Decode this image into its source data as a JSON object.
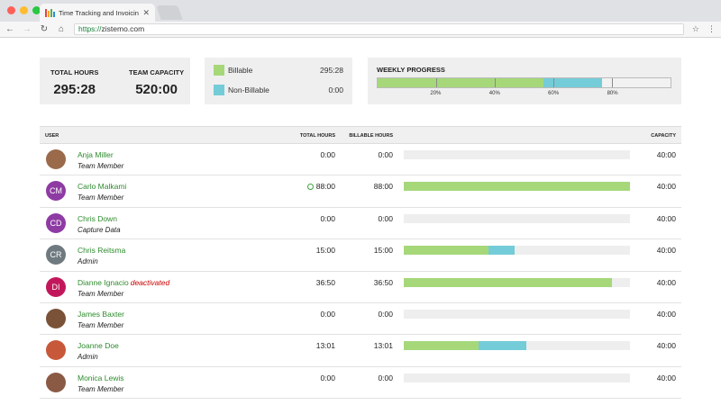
{
  "browser": {
    "tab_title": "Time Tracking and Invoicing i",
    "url_scheme": "https://",
    "url_host": "zistemo.com"
  },
  "colors": {
    "billable": "#a6d87a",
    "non_billable": "#74ccd8"
  },
  "summary": {
    "total_hours_label": "TOTAL HOURS",
    "total_hours": "295:28",
    "team_capacity_label": "TEAM CAPACITY",
    "team_capacity": "520:00"
  },
  "legend": {
    "billable_label": "Billable",
    "billable_value": "295:28",
    "non_billable_label": "Non-Billable",
    "non_billable_value": "0:00"
  },
  "weekly_progress": {
    "title": "WEEKLY PROGRESS",
    "billable_fraction": 0.565,
    "non_billable_fraction": 0.2,
    "ticks": [
      "20%",
      "40%",
      "60%",
      "80%"
    ]
  },
  "table": {
    "headers": {
      "user": "USER",
      "total": "TOTAL HOURS",
      "billable": "BILLABLE HOURS",
      "capacity": "CAPACITY"
    },
    "rows": [
      {
        "name": "Anja Miller",
        "role": "Team Member",
        "initials": "",
        "avatar_color": "#9a6a4a",
        "total": "0:00",
        "billable": "0:00",
        "capacity": "40:00",
        "billable_fraction": 0,
        "non_billable_fraction": 0,
        "deactivated": "",
        "clock": false
      },
      {
        "name": "Carlo Malkami",
        "role": "Team Member",
        "initials": "CM",
        "avatar_color": "#8e3ba3",
        "total": "88:00",
        "billable": "88:00",
        "capacity": "40:00",
        "billable_fraction": 1.0,
        "non_billable_fraction": 0,
        "deactivated": "",
        "clock": true
      },
      {
        "name": "Chris Down",
        "role": "Capture Data",
        "initials": "CD",
        "avatar_color": "#8e3ba3",
        "total": "0:00",
        "billable": "0:00",
        "capacity": "40:00",
        "billable_fraction": 0,
        "non_billable_fraction": 0,
        "deactivated": "",
        "clock": false
      },
      {
        "name": "Chris Reitsma",
        "role": "Admin",
        "initials": "CR",
        "avatar_color": "#6f7a80",
        "total": "15:00",
        "billable": "15:00",
        "capacity": "40:00",
        "billable_fraction": 0.375,
        "non_billable_fraction": 0.115,
        "deactivated": "",
        "clock": false
      },
      {
        "name": "Dianne Ignacio",
        "role": "Team Member",
        "initials": "DI",
        "avatar_color": "#c2185b",
        "total": "36:50",
        "billable": "36:50",
        "capacity": "40:00",
        "billable_fraction": 0.92,
        "non_billable_fraction": 0,
        "deactivated": "deactivated",
        "clock": false
      },
      {
        "name": "James Baxter",
        "role": "Team Member",
        "initials": "",
        "avatar_color": "#7a5238",
        "total": "0:00",
        "billable": "0:00",
        "capacity": "40:00",
        "billable_fraction": 0,
        "non_billable_fraction": 0,
        "deactivated": "",
        "clock": false
      },
      {
        "name": "Joanne Doe",
        "role": "Admin",
        "initials": "",
        "avatar_color": "#c8583a",
        "total": "13:01",
        "billable": "13:01",
        "capacity": "40:00",
        "billable_fraction": 0.33,
        "non_billable_fraction": 0.21,
        "deactivated": "",
        "clock": false
      },
      {
        "name": "Monica Lewis",
        "role": "Team Member",
        "initials": "",
        "avatar_color": "#8a5a44",
        "total": "0:00",
        "billable": "0:00",
        "capacity": "40:00",
        "billable_fraction": 0,
        "non_billable_fraction": 0,
        "deactivated": "",
        "clock": false
      }
    ]
  }
}
